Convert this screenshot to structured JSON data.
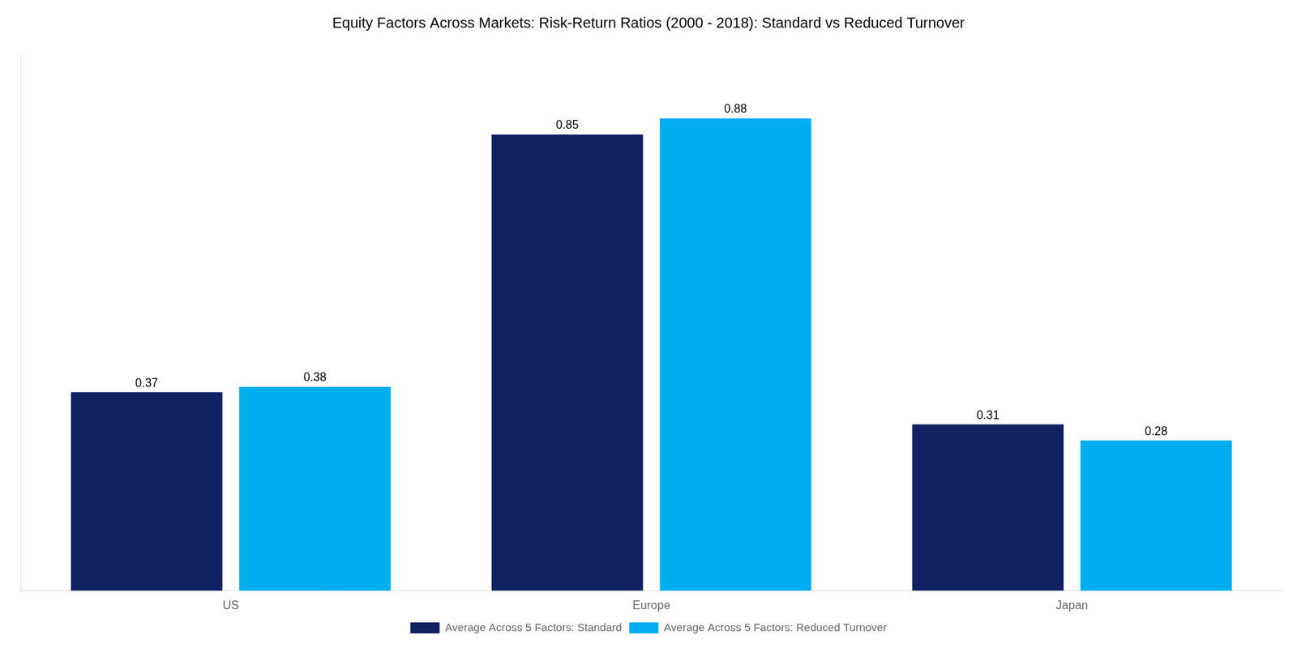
{
  "chart_data": {
    "type": "bar",
    "title": "Equity Factors Across Markets: Risk-Return Ratios (2000 - 2018): Standard vs Reduced Turnover",
    "categories": [
      "US",
      "Europe",
      "Japan"
    ],
    "series": [
      {
        "name": "Average Across 5 Factors: Standard",
        "color": "#102060",
        "values": [
          0.37,
          0.85,
          0.31
        ]
      },
      {
        "name": "Average Across 5 Factors: Reduced Turnover",
        "color": "#00AEEF",
        "values": [
          0.38,
          0.88,
          0.28
        ]
      }
    ],
    "ylim": [
      0,
      1.0
    ],
    "grid": false,
    "legend": "bottom",
    "data_labels": true,
    "tick_labels": "x"
  }
}
